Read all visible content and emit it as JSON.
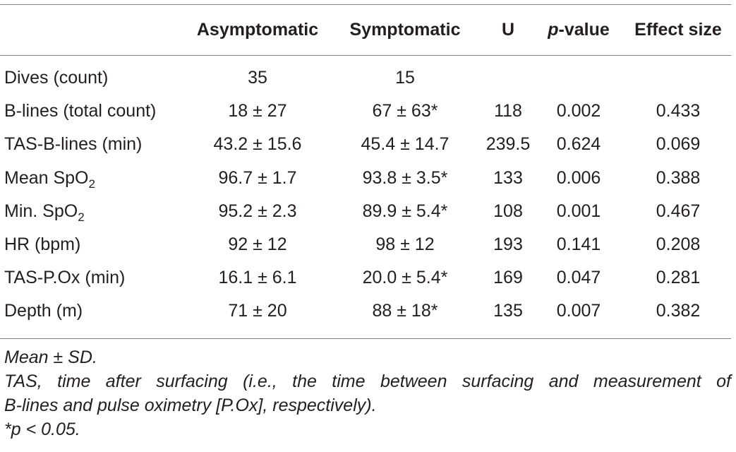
{
  "table": {
    "headers": {
      "asymptomatic": "Asymptomatic",
      "symptomatic": "Symptomatic",
      "u": "U",
      "p_value_italic": "p",
      "p_value_rest": "-value",
      "effect_size": "Effect size"
    },
    "rows": [
      {
        "label": "Dives (count)",
        "label_sub": "",
        "asym": "35",
        "sym": "15",
        "u": "",
        "p": "",
        "es": ""
      },
      {
        "label": "B-lines (total count)",
        "label_sub": "",
        "asym": "18 ± 27",
        "sym": "67 ± 63*",
        "u": "118",
        "p": "0.002",
        "es": "0.433"
      },
      {
        "label": "TAS-B-lines (min)",
        "label_sub": "",
        "asym": "43.2 ± 15.6",
        "sym": "45.4 ± 14.7",
        "u": "239.5",
        "p": "0.624",
        "es": "0.069"
      },
      {
        "label": "Mean SpO",
        "label_sub": "2",
        "asym": "96.7 ± 1.7",
        "sym": "93.8 ± 3.5*",
        "u": "133",
        "p": "0.006",
        "es": "0.388"
      },
      {
        "label": "Min. SpO",
        "label_sub": "2",
        "asym": "95.2 ± 2.3",
        "sym": "89.9 ± 5.4*",
        "u": "108",
        "p": "0.001",
        "es": "0.467"
      },
      {
        "label": "HR (bpm)",
        "label_sub": "",
        "asym": "92 ± 12",
        "sym": "98 ± 12",
        "u": "193",
        "p": "0.141",
        "es": "0.208"
      },
      {
        "label": "TAS-P.Ox (min)",
        "label_sub": "",
        "asym": "16.1 ± 6.1",
        "sym": "20.0 ± 5.4*",
        "u": "169",
        "p": "0.047",
        "es": "0.281"
      },
      {
        "label": "Depth (m)",
        "label_sub": "",
        "asym": "71 ± 20",
        "sym": "88 ± 18*",
        "u": "135",
        "p": "0.007",
        "es": "0.382"
      }
    ]
  },
  "footnotes": {
    "line1": "Mean ± SD.",
    "line2": "TAS, time after surfacing (i.e., the time between surfacing and measurement of",
    "line3": "B-lines and pulse oximetry [P.Ox], respectively).",
    "line4": "*p < 0.05."
  }
}
